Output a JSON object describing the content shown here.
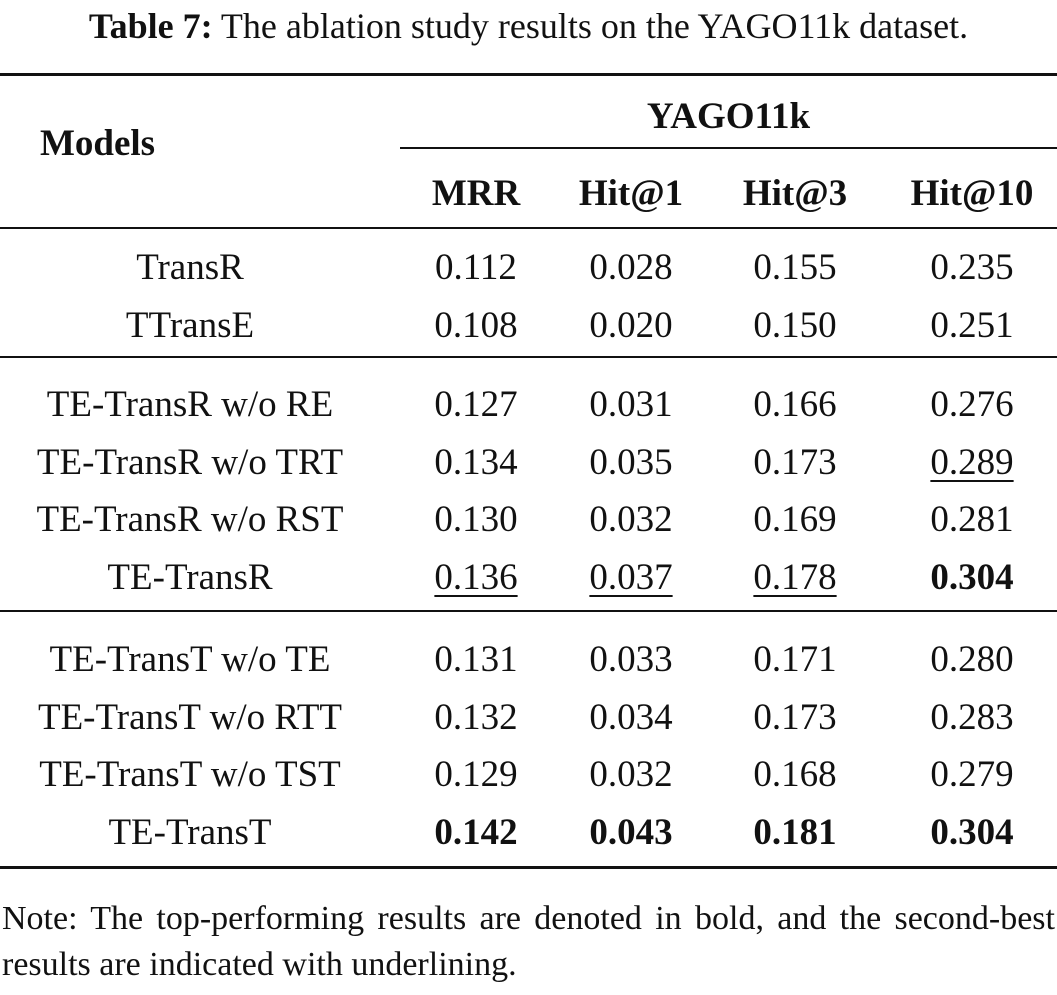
{
  "caption": {
    "label": "Table 7:",
    "text": " The ablation study results on the YAGO11k dataset."
  },
  "table": {
    "models_header": "Models",
    "dataset_header": "YAGO11k",
    "metric_headers": [
      "MRR",
      "Hit@1",
      "Hit@3",
      "Hit@10"
    ],
    "groups": [
      [
        {
          "model": "TransR",
          "values": [
            "0.112",
            "0.028",
            "0.155",
            "0.235"
          ],
          "styles": [
            "",
            "",
            "",
            ""
          ]
        },
        {
          "model": "TTransE",
          "values": [
            "0.108",
            "0.020",
            "0.150",
            "0.251"
          ],
          "styles": [
            "",
            "",
            "",
            ""
          ]
        }
      ],
      [
        {
          "model": "TE-TransR w/o RE",
          "values": [
            "0.127",
            "0.031",
            "0.166",
            "0.276"
          ],
          "styles": [
            "",
            "",
            "",
            ""
          ]
        },
        {
          "model": "TE-TransR w/o TRT",
          "values": [
            "0.134",
            "0.035",
            "0.173",
            "0.289"
          ],
          "styles": [
            "",
            "",
            "",
            "u"
          ]
        },
        {
          "model": "TE-TransR w/o RST",
          "values": [
            "0.130",
            "0.032",
            "0.169",
            "0.281"
          ],
          "styles": [
            "",
            "",
            "",
            ""
          ]
        },
        {
          "model": "TE-TransR",
          "values": [
            "0.136",
            "0.037",
            "0.178",
            "0.304"
          ],
          "styles": [
            "u",
            "u",
            "u",
            "b"
          ]
        }
      ],
      [
        {
          "model": "TE-TransT w/o TE",
          "values": [
            "0.131",
            "0.033",
            "0.171",
            "0.280"
          ],
          "styles": [
            "",
            "",
            "",
            ""
          ]
        },
        {
          "model": "TE-TransT w/o RTT",
          "values": [
            "0.132",
            "0.034",
            "0.173",
            "0.283"
          ],
          "styles": [
            "",
            "",
            "",
            ""
          ]
        },
        {
          "model": "TE-TransT w/o TST",
          "values": [
            "0.129",
            "0.032",
            "0.168",
            "0.279"
          ],
          "styles": [
            "",
            "",
            "",
            ""
          ]
        },
        {
          "model": "TE-TransT",
          "values": [
            "0.142",
            "0.043",
            "0.181",
            "0.304"
          ],
          "styles": [
            "b",
            "b",
            "b",
            "b"
          ]
        }
      ]
    ]
  },
  "note": "Note: The top-performing results are denoted in bold, and the second-best results are indicated with underlining."
}
